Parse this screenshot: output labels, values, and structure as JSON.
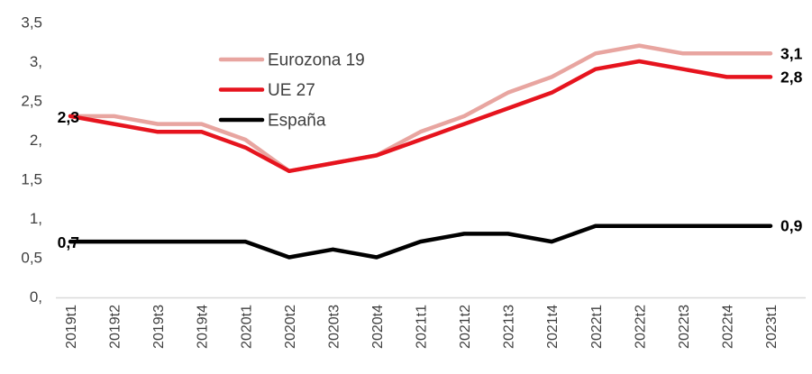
{
  "chart_data": {
    "type": "line",
    "title": "",
    "xlabel": "",
    "ylabel": "",
    "categories": [
      "2019t1",
      "2019t2",
      "2019t3",
      "2019t4",
      "2020t1",
      "2020t2",
      "2020t3",
      "2020t4",
      "2021t1",
      "2021t2",
      "2021t3",
      "2021t4",
      "2022t1",
      "2022t2",
      "2022t3",
      "2022t4",
      "2023t1"
    ],
    "series": [
      {
        "name": "Eurozona 19",
        "color": "#e8a5a0",
        "values": [
          2.3,
          2.3,
          2.2,
          2.2,
          2.0,
          1.6,
          1.7,
          1.8,
          2.1,
          2.3,
          2.6,
          2.8,
          3.1,
          3.2,
          3.1,
          3.1,
          3.1
        ],
        "start_label": "",
        "end_label": "3,1"
      },
      {
        "name": "UE 27",
        "color": "#e6141e",
        "values": [
          2.3,
          2.2,
          2.1,
          2.1,
          1.9,
          1.6,
          1.7,
          1.8,
          2.0,
          2.2,
          2.4,
          2.6,
          2.9,
          3.0,
          2.9,
          2.8,
          2.8
        ],
        "start_label": "2,3",
        "end_label": "2,8"
      },
      {
        "name": "España",
        "color": "#000000",
        "values": [
          0.7,
          0.7,
          0.7,
          0.7,
          0.7,
          0.5,
          0.6,
          0.5,
          0.7,
          0.8,
          0.8,
          0.7,
          0.9,
          0.9,
          0.9,
          0.9,
          0.9
        ],
        "start_label": "0,7",
        "end_label": "0,9"
      }
    ],
    "y_ticks": [
      {
        "label": "3,5",
        "value": 3.5
      },
      {
        "label": "3,",
        "value": 3.0
      },
      {
        "label": "2,5",
        "value": 2.5
      },
      {
        "label": "2,",
        "value": 2.0
      },
      {
        "label": "1,5",
        "value": 1.5
      },
      {
        "label": "1,",
        "value": 1.0
      },
      {
        "label": "0,5",
        "value": 0.5
      },
      {
        "label": "0,",
        "value": 0.0
      }
    ],
    "ylim": [
      0,
      3.5
    ],
    "grid": false,
    "legend_position": "upper-center-left",
    "legend_items": [
      "Eurozona 19",
      "UE 27",
      "España"
    ],
    "style": {
      "axis_line_color": "#d9d9d9",
      "tick_text_color": "#3f3f3f",
      "data_label_color": "#000000",
      "background_color": "#ffffff",
      "frame_border_color": "#d9d9dc"
    }
  }
}
